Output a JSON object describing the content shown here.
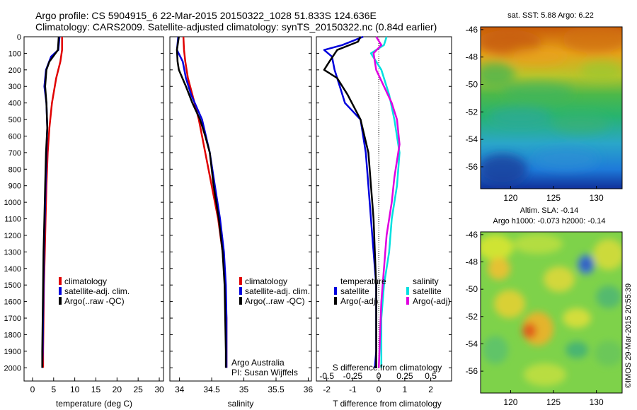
{
  "header": {
    "line1": "Argo profile: CS 5904915_6 22-Mar-2015 20150322_1028 51.833S 124.636E",
    "line2": "Climatology: CARS2009. Satellite-adjusted climatology: synTS_20150322.nc (0.84d earlier)"
  },
  "colors": {
    "climatology": "#e00000",
    "satellite": "#0000dd",
    "argo": "#000000",
    "satellite_salinity": "#00e0e0",
    "argo_salinity": "#e000e0"
  },
  "chart_data": [
    {
      "type": "line",
      "id": "temperature",
      "xlabel": "temperature (deg C)",
      "xlim": [
        -2,
        31
      ],
      "xticks": [
        0,
        5,
        10,
        15,
        20,
        25,
        30
      ],
      "ylim": [
        2080,
        0
      ],
      "yticks": [
        0,
        100,
        200,
        300,
        400,
        500,
        600,
        700,
        800,
        900,
        1000,
        1100,
        1200,
        1300,
        1400,
        1500,
        1600,
        1700,
        1800,
        1900,
        2000
      ],
      "legend": [
        "climatology",
        "satellite-adj. clim.",
        "Argo(..raw -QC)"
      ],
      "series": [
        {
          "name": "climatology",
          "color": "#e00000",
          "points": [
            [
              7,
              0
            ],
            [
              7,
              80
            ],
            [
              6.6,
              150
            ],
            [
              5.6,
              250
            ],
            [
              4.6,
              400
            ],
            [
              4,
              550
            ],
            [
              3.6,
              700
            ],
            [
              3.3,
              900
            ],
            [
              3.1,
              1100
            ],
            [
              2.9,
              1300
            ],
            [
              2.7,
              1500
            ],
            [
              2.6,
              1700
            ],
            [
              2.5,
              1900
            ],
            [
              2.5,
              2000
            ]
          ]
        },
        {
          "name": "satellite-adj. clim.",
          "color": "#0000dd",
          "points": [
            [
              6.4,
              0
            ],
            [
              6.1,
              80
            ],
            [
              4.4,
              120
            ],
            [
              3.2,
              200
            ],
            [
              2.8,
              300
            ],
            [
              3.3,
              400
            ],
            [
              3.5,
              550
            ],
            [
              3.3,
              700
            ],
            [
              3.1,
              900
            ],
            [
              2.9,
              1100
            ],
            [
              2.7,
              1300
            ],
            [
              2.6,
              1500
            ],
            [
              2.5,
              1700
            ],
            [
              2.4,
              1900
            ],
            [
              2.3,
              2000
            ]
          ]
        },
        {
          "name": "Argo(..raw -QC)",
          "color": "#000000",
          "points": [
            [
              6.2,
              0
            ],
            [
              6,
              80
            ],
            [
              4,
              150
            ],
            [
              3.3,
              200
            ],
            [
              3,
              300
            ],
            [
              3.3,
              400
            ],
            [
              3.5,
              550
            ],
            [
              3.2,
              700
            ],
            [
              3,
              900
            ],
            [
              2.8,
              1100
            ],
            [
              2.6,
              1300
            ],
            [
              2.5,
              1500
            ],
            [
              2.4,
              1700
            ],
            [
              2.3,
              1900
            ],
            [
              2.3,
              2000
            ]
          ]
        }
      ]
    },
    {
      "type": "line",
      "id": "salinity",
      "xlabel": "salinity",
      "xlim": [
        33.85,
        36.05
      ],
      "xticks": [
        34,
        34.5,
        35,
        35.5,
        36
      ],
      "ylim": [
        2080,
        0
      ],
      "legend": [
        "climatology",
        "satellite-adj. clim.",
        "Argo(..raw -QC)"
      ],
      "annotation": [
        "Argo Australia",
        "PI: Susan Wijffels"
      ],
      "series": [
        {
          "name": "climatology",
          "color": "#e00000",
          "points": [
            [
              34.06,
              0
            ],
            [
              34.07,
              80
            ],
            [
              34.09,
              150
            ],
            [
              34.13,
              250
            ],
            [
              34.2,
              350
            ],
            [
              34.3,
              500
            ],
            [
              34.4,
              700
            ],
            [
              34.5,
              900
            ],
            [
              34.6,
              1100
            ],
            [
              34.67,
              1300
            ],
            [
              34.71,
              1500
            ],
            [
              34.73,
              1700
            ],
            [
              34.73,
              1900
            ],
            [
              34.73,
              2000
            ]
          ]
        },
        {
          "name": "satellite-adj. clim.",
          "color": "#0000dd",
          "points": [
            [
              33.98,
              0
            ],
            [
              33.96,
              80
            ],
            [
              34.05,
              150
            ],
            [
              34.1,
              250
            ],
            [
              34.18,
              350
            ],
            [
              34.35,
              500
            ],
            [
              34.47,
              700
            ],
            [
              34.55,
              900
            ],
            [
              34.63,
              1100
            ],
            [
              34.69,
              1300
            ],
            [
              34.72,
              1500
            ],
            [
              34.73,
              1700
            ],
            [
              34.73,
              1900
            ],
            [
              34.73,
              2000
            ]
          ]
        },
        {
          "name": "Argo(..raw -QC)",
          "color": "#000000",
          "points": [
            [
              33.99,
              0
            ],
            [
              33.96,
              80
            ],
            [
              33.97,
              150
            ],
            [
              33.99,
              200
            ],
            [
              34.1,
              300
            ],
            [
              34.2,
              400
            ],
            [
              34.32,
              500
            ],
            [
              34.4,
              600
            ],
            [
              34.47,
              700
            ],
            [
              34.53,
              900
            ],
            [
              34.61,
              1100
            ],
            [
              34.67,
              1300
            ],
            [
              34.7,
              1500
            ],
            [
              34.71,
              1700
            ],
            [
              34.72,
              1900
            ],
            [
              34.72,
              2000
            ]
          ]
        }
      ]
    },
    {
      "type": "line",
      "id": "difference",
      "xlabel": "T difference from climatology",
      "xlabel_top": "S difference from climatology",
      "xlim": [
        -2.4,
        2.8
      ],
      "xticks": [
        -2,
        -1,
        0,
        1,
        2
      ],
      "top_ticks": [
        "-0.5",
        "-0.25",
        "0",
        "0.25",
        "0.5"
      ],
      "ylim": [
        2080,
        0
      ],
      "legend": {
        "temperature_heading": "temperature",
        "salinity_heading": "salinity",
        "temperature": [
          "satellite",
          "Argo(-adj)"
        ],
        "salinity": [
          "satellite",
          "Argo(-adj)"
        ]
      },
      "series": [
        {
          "name": "satellite",
          "group": "temperature",
          "color": "#0000dd",
          "points": [
            [
              -0.6,
              0
            ],
            [
              -1.4,
              50
            ],
            [
              -2.1,
              80
            ],
            [
              -1.8,
              120
            ],
            [
              -1.7,
              200
            ],
            [
              -1.5,
              300
            ],
            [
              -1.3,
              400
            ],
            [
              -0.7,
              500
            ],
            [
              -0.5,
              700
            ],
            [
              -0.4,
              900
            ],
            [
              -0.3,
              1100
            ],
            [
              -0.2,
              1300
            ],
            [
              -0.1,
              1500
            ],
            [
              -0.1,
              1700
            ],
            [
              -0.1,
              1900
            ],
            [
              -0.15,
              2000
            ]
          ]
        },
        {
          "name": "Argo(-adj)",
          "group": "temperature",
          "color": "#000000",
          "points": [
            [
              -0.7,
              0
            ],
            [
              -0.8,
              30
            ],
            [
              -1.6,
              80
            ],
            [
              -1.9,
              150
            ],
            [
              -2.1,
              200
            ],
            [
              -1.6,
              250
            ],
            [
              -1.2,
              350
            ],
            [
              -0.7,
              500
            ],
            [
              -0.4,
              700
            ],
            [
              -0.3,
              900
            ],
            [
              -0.2,
              1100
            ],
            [
              -0.15,
              1300
            ],
            [
              -0.1,
              1500
            ],
            [
              -0.1,
              1700
            ],
            [
              -0.1,
              1900
            ],
            [
              -0.1,
              2000
            ]
          ]
        },
        {
          "name": "satellite",
          "group": "salinity",
          "color": "#00e0e0",
          "points": [
            [
              0.3,
              0
            ],
            [
              0.2,
              50
            ],
            [
              -0.3,
              100
            ],
            [
              -0.1,
              150
            ],
            [
              0.1,
              200
            ],
            [
              0.4,
              350
            ],
            [
              0.6,
              500
            ],
            [
              0.8,
              700
            ],
            [
              0.7,
              900
            ],
            [
              0.5,
              1100
            ],
            [
              0.4,
              1300
            ],
            [
              0.2,
              1500
            ],
            [
              0.1,
              1700
            ],
            [
              0.1,
              1900
            ],
            [
              0.1,
              2000
            ]
          ]
        },
        {
          "name": "Argo(-adj)",
          "group": "salinity",
          "color": "#e000e0",
          "points": [
            [
              -0.1,
              0
            ],
            [
              0.1,
              50
            ],
            [
              -0.2,
              100
            ],
            [
              -0.1,
              200
            ],
            [
              0.2,
              300
            ],
            [
              0.5,
              400
            ],
            [
              0.7,
              500
            ],
            [
              0.8,
              650
            ],
            [
              0.6,
              850
            ],
            [
              0.5,
              1000
            ],
            [
              0.3,
              1200
            ],
            [
              0.2,
              1400
            ],
            [
              0.1,
              1600
            ],
            [
              0.05,
              1800
            ],
            [
              0,
              2000
            ]
          ]
        }
      ]
    },
    {
      "type": "heatmap",
      "id": "sst-map",
      "title": "sat. SST: 5.88 Argo: 6.22",
      "xticks": [
        120,
        125,
        130
      ],
      "yticks": [
        -46,
        -48,
        -50,
        -52,
        -54,
        -56
      ],
      "xlim": [
        116.5,
        133
      ],
      "ylim": [
        -57.6,
        -45.8
      ]
    },
    {
      "type": "heatmap",
      "id": "sla-map",
      "title_lines": [
        "Altim. SLA: -0.14",
        "Argo h1000: -0.073 h2000: -0.14"
      ],
      "xticks": [
        120,
        125,
        130
      ],
      "yticks": [
        -46,
        -48,
        -50,
        -52,
        -54,
        -56
      ],
      "xlim": [
        116.5,
        133
      ],
      "ylim": [
        -57.6,
        -45.8
      ]
    }
  ],
  "footer": {
    "stamp": "©IMOS 29-Mar-2015 20:55:39"
  }
}
